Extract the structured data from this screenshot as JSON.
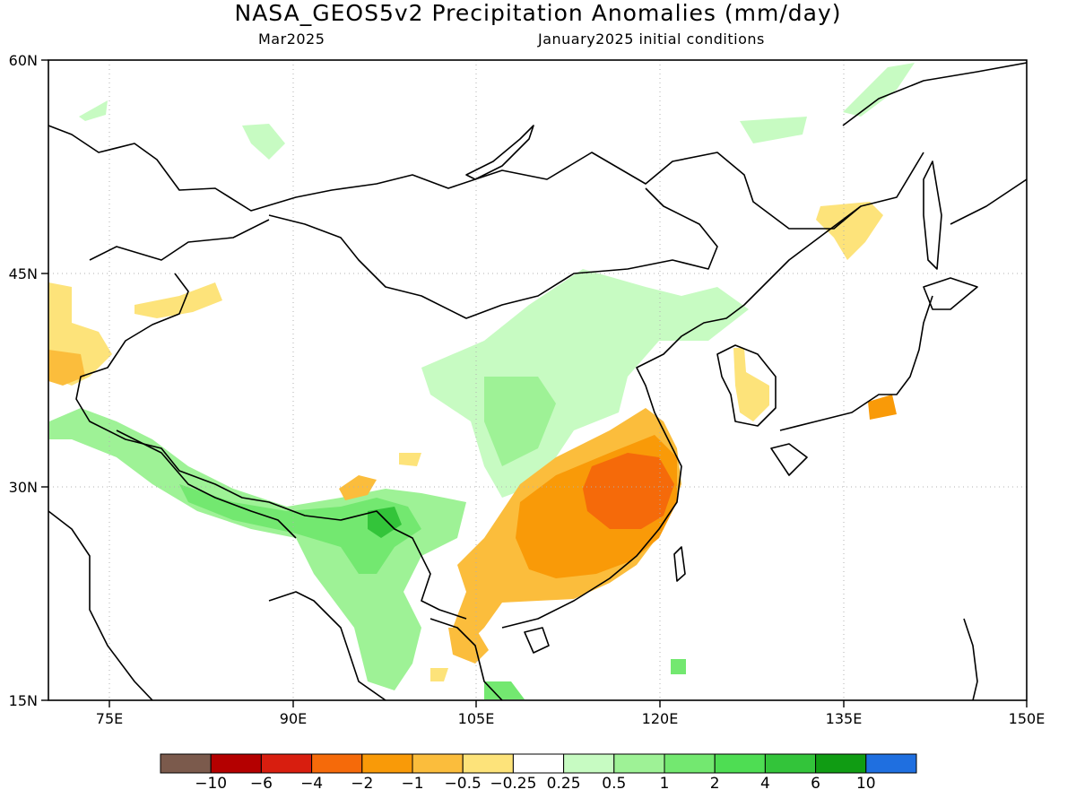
{
  "title": "NASA_GEOS5v2 Precipitation Anomalies (mm/day)",
  "subtitle_left": "Mar2025",
  "subtitle_right": "January2025 initial conditions",
  "axes": {
    "y_ticks": [
      "60N",
      "45N",
      "30N",
      "15N"
    ],
    "x_ticks": [
      "75E",
      "90E",
      "105E",
      "120E",
      "135E",
      "150E"
    ]
  },
  "legend": {
    "colors": [
      "#7b5a4c",
      "#b40000",
      "#d81e0f",
      "#f56a0a",
      "#f99a08",
      "#fbbd3c",
      "#fde37a",
      "#ffffff",
      "#c7fbc2",
      "#9ef296",
      "#73e870",
      "#4edd53",
      "#33c43a",
      "#109c13",
      "#1f6fe0"
    ],
    "labels": [
      "-10",
      "-6",
      "-4",
      "-2",
      "-1",
      "-0.5",
      "-0.25",
      "0.25",
      "0.5",
      "1",
      "2",
      "4",
      "6",
      "10"
    ]
  }
}
